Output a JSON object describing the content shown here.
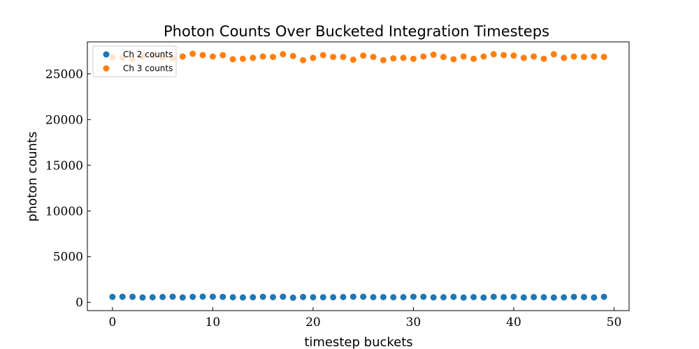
{
  "chart_data": {
    "type": "scatter",
    "title": "Photon Counts Over Bucketed Integration Timesteps",
    "xlabel": "timestep buckets",
    "ylabel": "photon counts",
    "xlim": [
      -2.5,
      51.5
    ],
    "ylim": [
      -900,
      28500
    ],
    "xticks": [
      0,
      10,
      20,
      30,
      40,
      50
    ],
    "yticks": [
      0,
      5000,
      10000,
      15000,
      20000,
      25000
    ],
    "grid": false,
    "legend_position": "top-left",
    "x": [
      0,
      1,
      2,
      3,
      4,
      5,
      6,
      7,
      8,
      9,
      10,
      11,
      12,
      13,
      14,
      15,
      16,
      17,
      18,
      19,
      20,
      21,
      22,
      23,
      24,
      25,
      26,
      27,
      28,
      29,
      30,
      31,
      32,
      33,
      34,
      35,
      36,
      37,
      38,
      39,
      40,
      41,
      42,
      43,
      44,
      45,
      46,
      47,
      48,
      49
    ],
    "series": [
      {
        "name": "Ch 2 counts",
        "color": "#1f77b4",
        "values": [
          600,
          620,
          610,
          540,
          560,
          590,
          620,
          540,
          600,
          630,
          620,
          600,
          560,
          540,
          560,
          610,
          570,
          620,
          510,
          590,
          560,
          560,
          560,
          580,
          620,
          620,
          570,
          580,
          560,
          570,
          620,
          610,
          550,
          560,
          600,
          530,
          580,
          530,
          610,
          570,
          610,
          540,
          580,
          560,
          530,
          550,
          600,
          580,
          540,
          610
        ]
      },
      {
        "name": "Ch 3 counts",
        "color": "#ff7f0e",
        "values": [
          26800,
          26750,
          26600,
          26900,
          26950,
          26800,
          26700,
          26900,
          27200,
          27050,
          26900,
          27050,
          26600,
          26650,
          26750,
          26900,
          26850,
          27150,
          26950,
          26500,
          26750,
          27050,
          26850,
          26850,
          26550,
          27000,
          26850,
          26500,
          26700,
          26750,
          26650,
          26900,
          27100,
          26850,
          26600,
          26900,
          26650,
          26900,
          27150,
          27050,
          27000,
          26750,
          26900,
          26650,
          27150,
          26750,
          26900,
          26850,
          26900,
          26850
        ]
      }
    ]
  }
}
